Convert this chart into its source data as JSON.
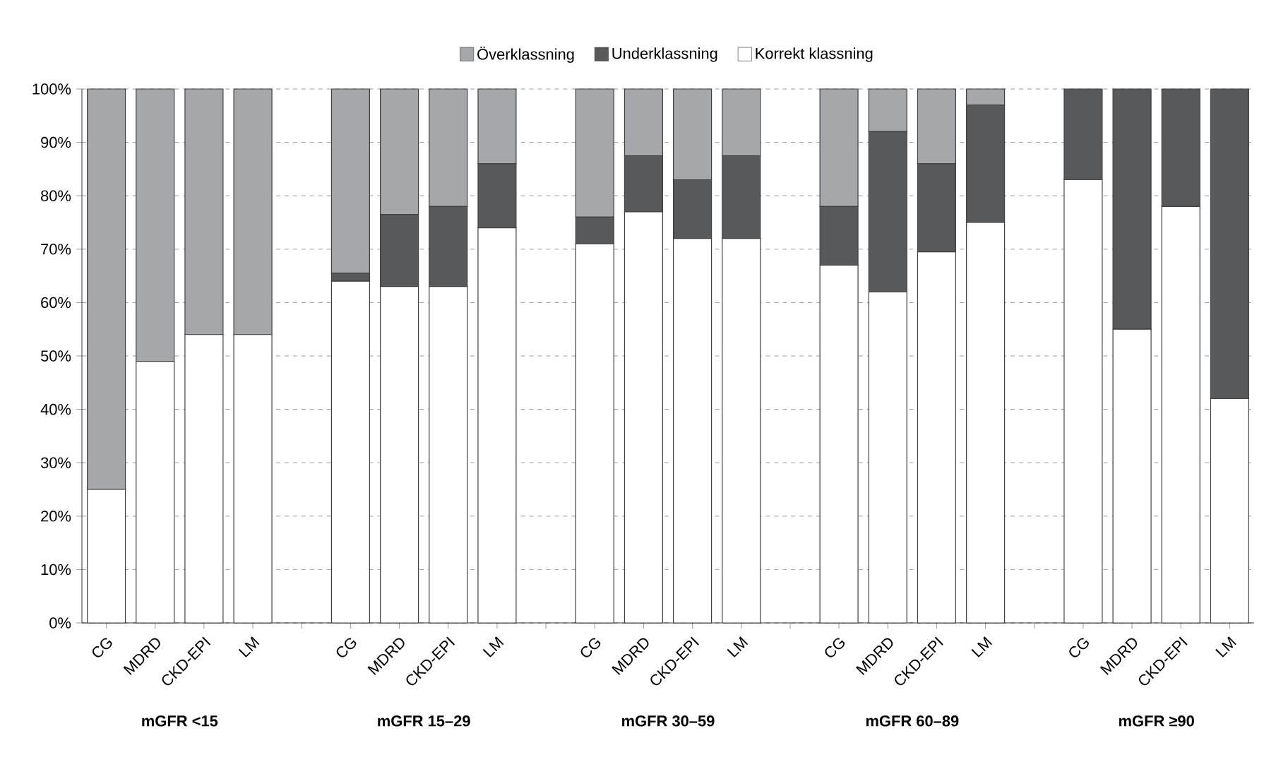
{
  "chart_data": {
    "type": "bar",
    "stacked": true,
    "categories": [
      "CG",
      "MDRD",
      "CKD-EPI",
      "LM",
      null,
      "CG",
      "MDRD",
      "CKD-EPI",
      "LM",
      null,
      "CG",
      "MDRD",
      "CKD-EPI",
      "LM",
      null,
      "CG",
      "MDRD",
      "CKD-EPI",
      "LM",
      null,
      "CG",
      "MDRD",
      "CKD-EPI",
      "LM"
    ],
    "series": [
      {
        "name": "Korrekt klassning",
        "color": "#ffffff",
        "values": [
          25,
          49,
          54,
          54,
          null,
          64,
          63,
          63,
          74,
          null,
          71,
          77,
          72,
          72,
          null,
          67,
          62,
          69.5,
          75,
          null,
          83,
          55,
          78,
          42
        ]
      },
      {
        "name": "Underklassning",
        "color": "#58595b",
        "values": [
          0,
          0,
          0,
          0,
          null,
          1.5,
          13.5,
          15,
          12,
          null,
          5,
          10.5,
          11,
          15.5,
          null,
          11,
          30,
          16.5,
          22,
          null,
          17,
          45,
          22,
          58
        ]
      },
      {
        "name": "Överklassning",
        "color": "#a6a7aa",
        "values": [
          75,
          51,
          46,
          46,
          null,
          34.5,
          23.5,
          22,
          14,
          null,
          24,
          12.5,
          17,
          12.5,
          null,
          22,
          8,
          14,
          3,
          null,
          0,
          0,
          0,
          0
        ]
      }
    ],
    "ylim": [
      0,
      100
    ],
    "yticks": [
      {
        "value": 0,
        "label": "0%"
      },
      {
        "value": 10,
        "label": "10%"
      },
      {
        "value": 20,
        "label": "20%"
      },
      {
        "value": 30,
        "label": "30%"
      },
      {
        "value": 40,
        "label": "40%"
      },
      {
        "value": 50,
        "label": "50%"
      },
      {
        "value": 60,
        "label": "60%"
      },
      {
        "value": 70,
        "label": "70%"
      },
      {
        "value": 80,
        "label": "80%"
      },
      {
        "value": 90,
        "label": "90%"
      },
      {
        "value": 100,
        "label": "100%"
      }
    ],
    "grid": "y",
    "legend": "top",
    "annotations": [
      "mGFR <15",
      "mGFR 15–29",
      "mGFR 30–59",
      "mGFR 60–89",
      "mGFR ≥90"
    ]
  }
}
